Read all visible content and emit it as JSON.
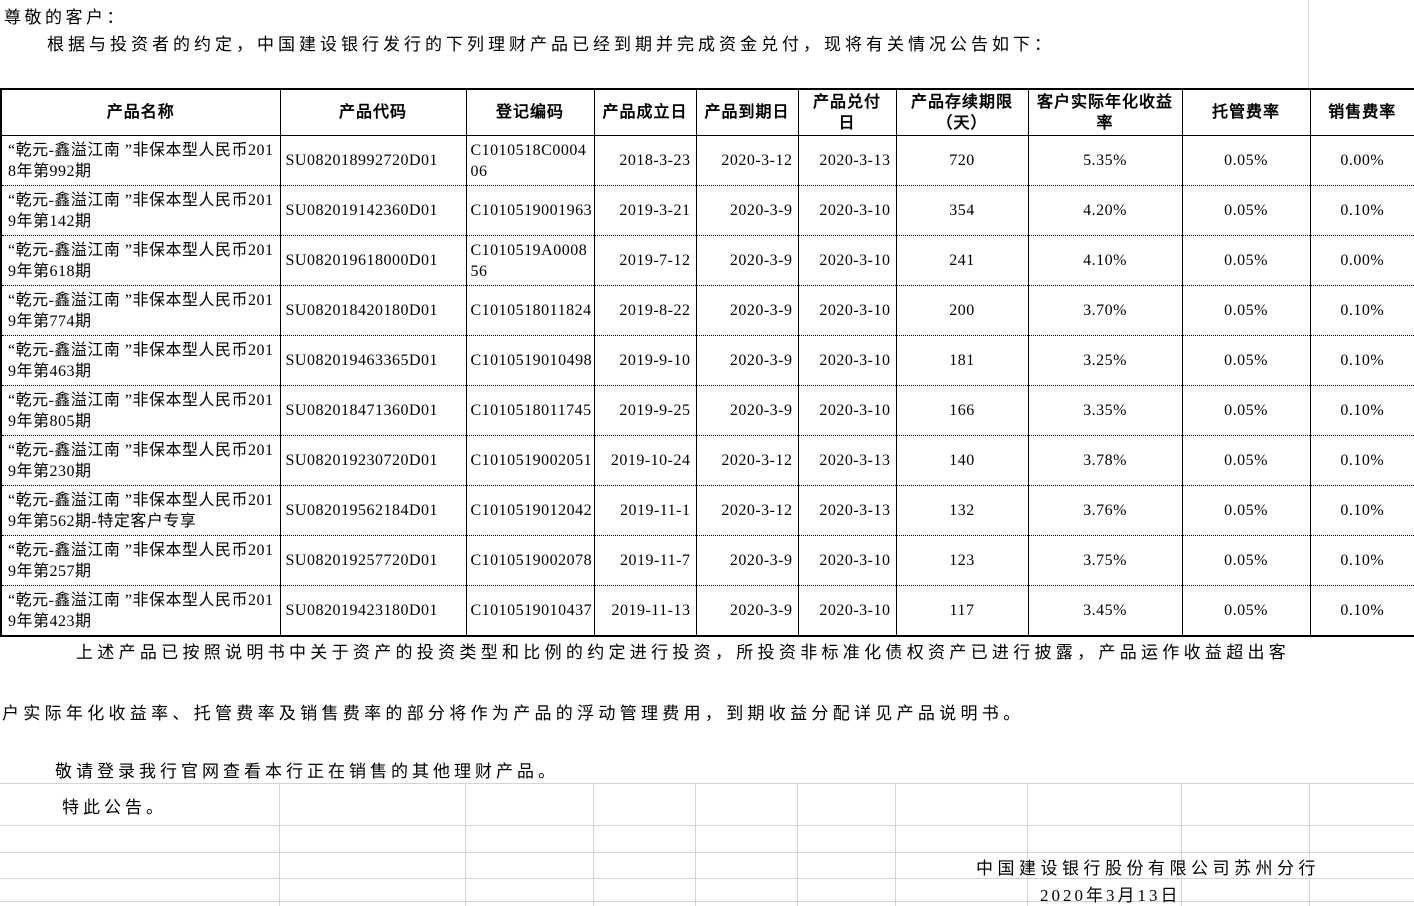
{
  "page": {
    "greeting": "尊敬的客户：",
    "intro": "根据与投资者的约定，中国建设银行发行的下列理财产品已经到期并完成资金兑付，现将有关情况公告如下："
  },
  "table": {
    "headers": [
      "产品名称",
      "产品代码",
      "登记编码",
      "产品成立日",
      "产品到期日",
      "产品兑付日",
      "产品存续期限（天）",
      "客户实际年化收益率",
      "托管费率",
      "销售费率"
    ],
    "rows": [
      [
        "“乾元-鑫溢江南 ”非保本型人民币2018年第992期",
        "SU082018992720D01",
        "C1010518C000406",
        "2018-3-23",
        "2020-3-12",
        "2020-3-13",
        "720",
        "5.35%",
        "0.05%",
        "0.00%"
      ],
      [
        "“乾元-鑫溢江南 ”非保本型人民币2019年第142期",
        "SU082019142360D01",
        "C1010519001963",
        "2019-3-21",
        "2020-3-9",
        "2020-3-10",
        "354",
        "4.20%",
        "0.05%",
        "0.10%"
      ],
      [
        "“乾元-鑫溢江南 ”非保本型人民币2019年第618期",
        "SU082019618000D01",
        "C1010519A000856",
        "2019-7-12",
        "2020-3-9",
        "2020-3-10",
        "241",
        "4.10%",
        "0.05%",
        "0.00%"
      ],
      [
        "“乾元-鑫溢江南 ”非保本型人民币2019年第774期",
        "SU082018420180D01",
        "C1010518011824",
        "2019-8-22",
        "2020-3-9",
        "2020-3-10",
        "200",
        "3.70%",
        "0.05%",
        "0.10%"
      ],
      [
        "“乾元-鑫溢江南 ”非保本型人民币2019年第463期",
        "SU082019463365D01",
        "C1010519010498",
        "2019-9-10",
        "2020-3-9",
        "2020-3-10",
        "181",
        "3.25%",
        "0.05%",
        "0.10%"
      ],
      [
        "“乾元-鑫溢江南 ”非保本型人民币2019年第805期",
        "SU082018471360D01",
        "C1010518011745",
        "2019-9-25",
        "2020-3-9",
        "2020-3-10",
        "166",
        "3.35%",
        "0.05%",
        "0.10%"
      ],
      [
        "“乾元-鑫溢江南 ”非保本型人民币2019年第230期",
        "SU082019230720D01",
        "C1010519002051",
        "2019-10-24",
        "2020-3-12",
        "2020-3-13",
        "140",
        "3.78%",
        "0.05%",
        "0.10%"
      ],
      [
        "“乾元-鑫溢江南 ”非保本型人民币2019年第562期-特定客户专享",
        "SU082019562184D01",
        "C1010519012042",
        "2019-11-1",
        "2020-3-12",
        "2020-3-13",
        "132",
        "3.76%",
        "0.05%",
        "0.10%"
      ],
      [
        "“乾元-鑫溢江南 ”非保本型人民币2019年第257期",
        "SU082019257720D01",
        "C1010519002078",
        "2019-11-7",
        "2020-3-9",
        "2020-3-10",
        "123",
        "3.75%",
        "0.05%",
        "0.10%"
      ],
      [
        "“乾元-鑫溢江南 ”非保本型人民币2019年第423期",
        "SU082019423180D01",
        "C1010519010437",
        "2019-11-13",
        "2020-3-9",
        "2020-3-10",
        "117",
        "3.45%",
        "0.05%",
        "0.10%"
      ]
    ]
  },
  "footer": {
    "para_line1": "上述产品已按照说明书中关于资产的投资类型和比例的约定进行投资，所投资非标准化债权资产已进行披露，产品运作收益超出客",
    "para_line2": "户实际年化收益率、托管费率及销售费率的部分将作为产品的浮动管理费用，到期收益分配详见产品说明书。",
    "note": "敬请登录我行官网查看本行正在销售的其他理财产品。",
    "closing": "特此公告。",
    "signature": "中国建设银行股份有限公司苏州分行",
    "date": "2020年3月13日"
  },
  "colors": {
    "text": "#000000",
    "table_border": "#000000",
    "gridline": "#d4d4d4",
    "background": "#ffffff"
  }
}
